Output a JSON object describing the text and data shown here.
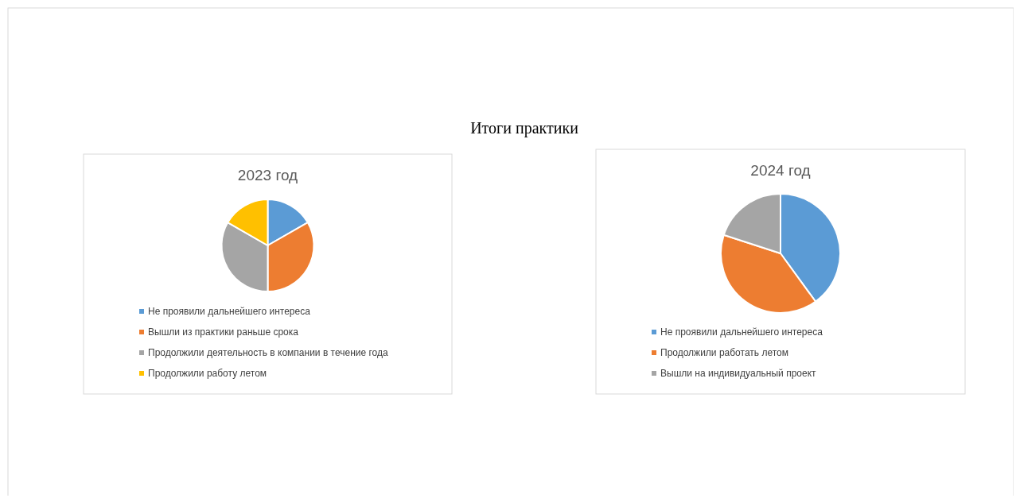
{
  "chart_data": [
    {
      "type": "other",
      "title": "Итоги практики"
    },
    {
      "type": "pie",
      "title": "2023 год",
      "categories": [
        "Не проявили дальнейшего интереса",
        "Вышли из практики раньше срока",
        "Продолжили деятельность в компании в течение года",
        "Продолжили работу летом"
      ],
      "values": [
        16.67,
        33.33,
        33.33,
        16.67
      ],
      "colors": [
        "#5b9bd5",
        "#ed7d31",
        "#a5a5a5",
        "#ffc000"
      ],
      "legend": "bottom"
    },
    {
      "type": "pie",
      "title": "2024 год",
      "categories": [
        "Не проявили дальнейшего интереса",
        "Продолжили работать летом",
        "Вышли на индивидуальный проект"
      ],
      "values": [
        40,
        40,
        20
      ],
      "colors": [
        "#5b9bd5",
        "#ed7d31",
        "#a5a5a5"
      ],
      "legend": "bottom"
    }
  ]
}
